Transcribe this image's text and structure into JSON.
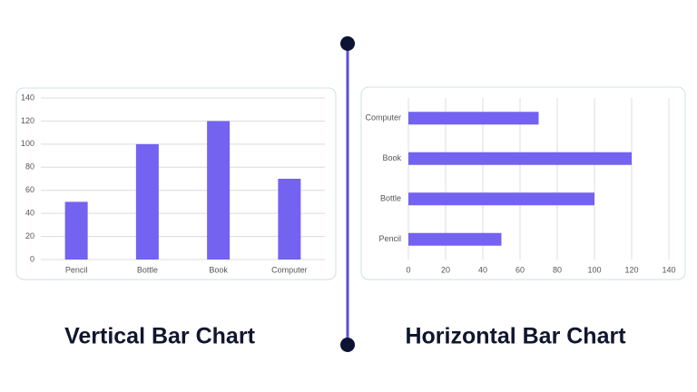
{
  "chart_data": [
    {
      "type": "bar",
      "orientation": "vertical",
      "title": "Vertical Bar Chart",
      "categories": [
        "Pencil",
        "Bottle",
        "Book",
        "Computer"
      ],
      "values": [
        50,
        100,
        120,
        70
      ],
      "color": "#7462f0",
      "ylim": [
        0,
        140
      ],
      "yticks": [
        0,
        20,
        40,
        60,
        80,
        100,
        120,
        140
      ],
      "grid": true
    },
    {
      "type": "bar",
      "orientation": "horizontal",
      "title": "Horizontal Bar Chart",
      "categories": [
        "Pencil",
        "Bottle",
        "Book",
        "Computer"
      ],
      "values": [
        50,
        100,
        120,
        70
      ],
      "color": "#7462f0",
      "xlim": [
        0,
        140
      ],
      "xticks": [
        0,
        20,
        40,
        60,
        80,
        100,
        120,
        140
      ],
      "grid": true
    }
  ]
}
